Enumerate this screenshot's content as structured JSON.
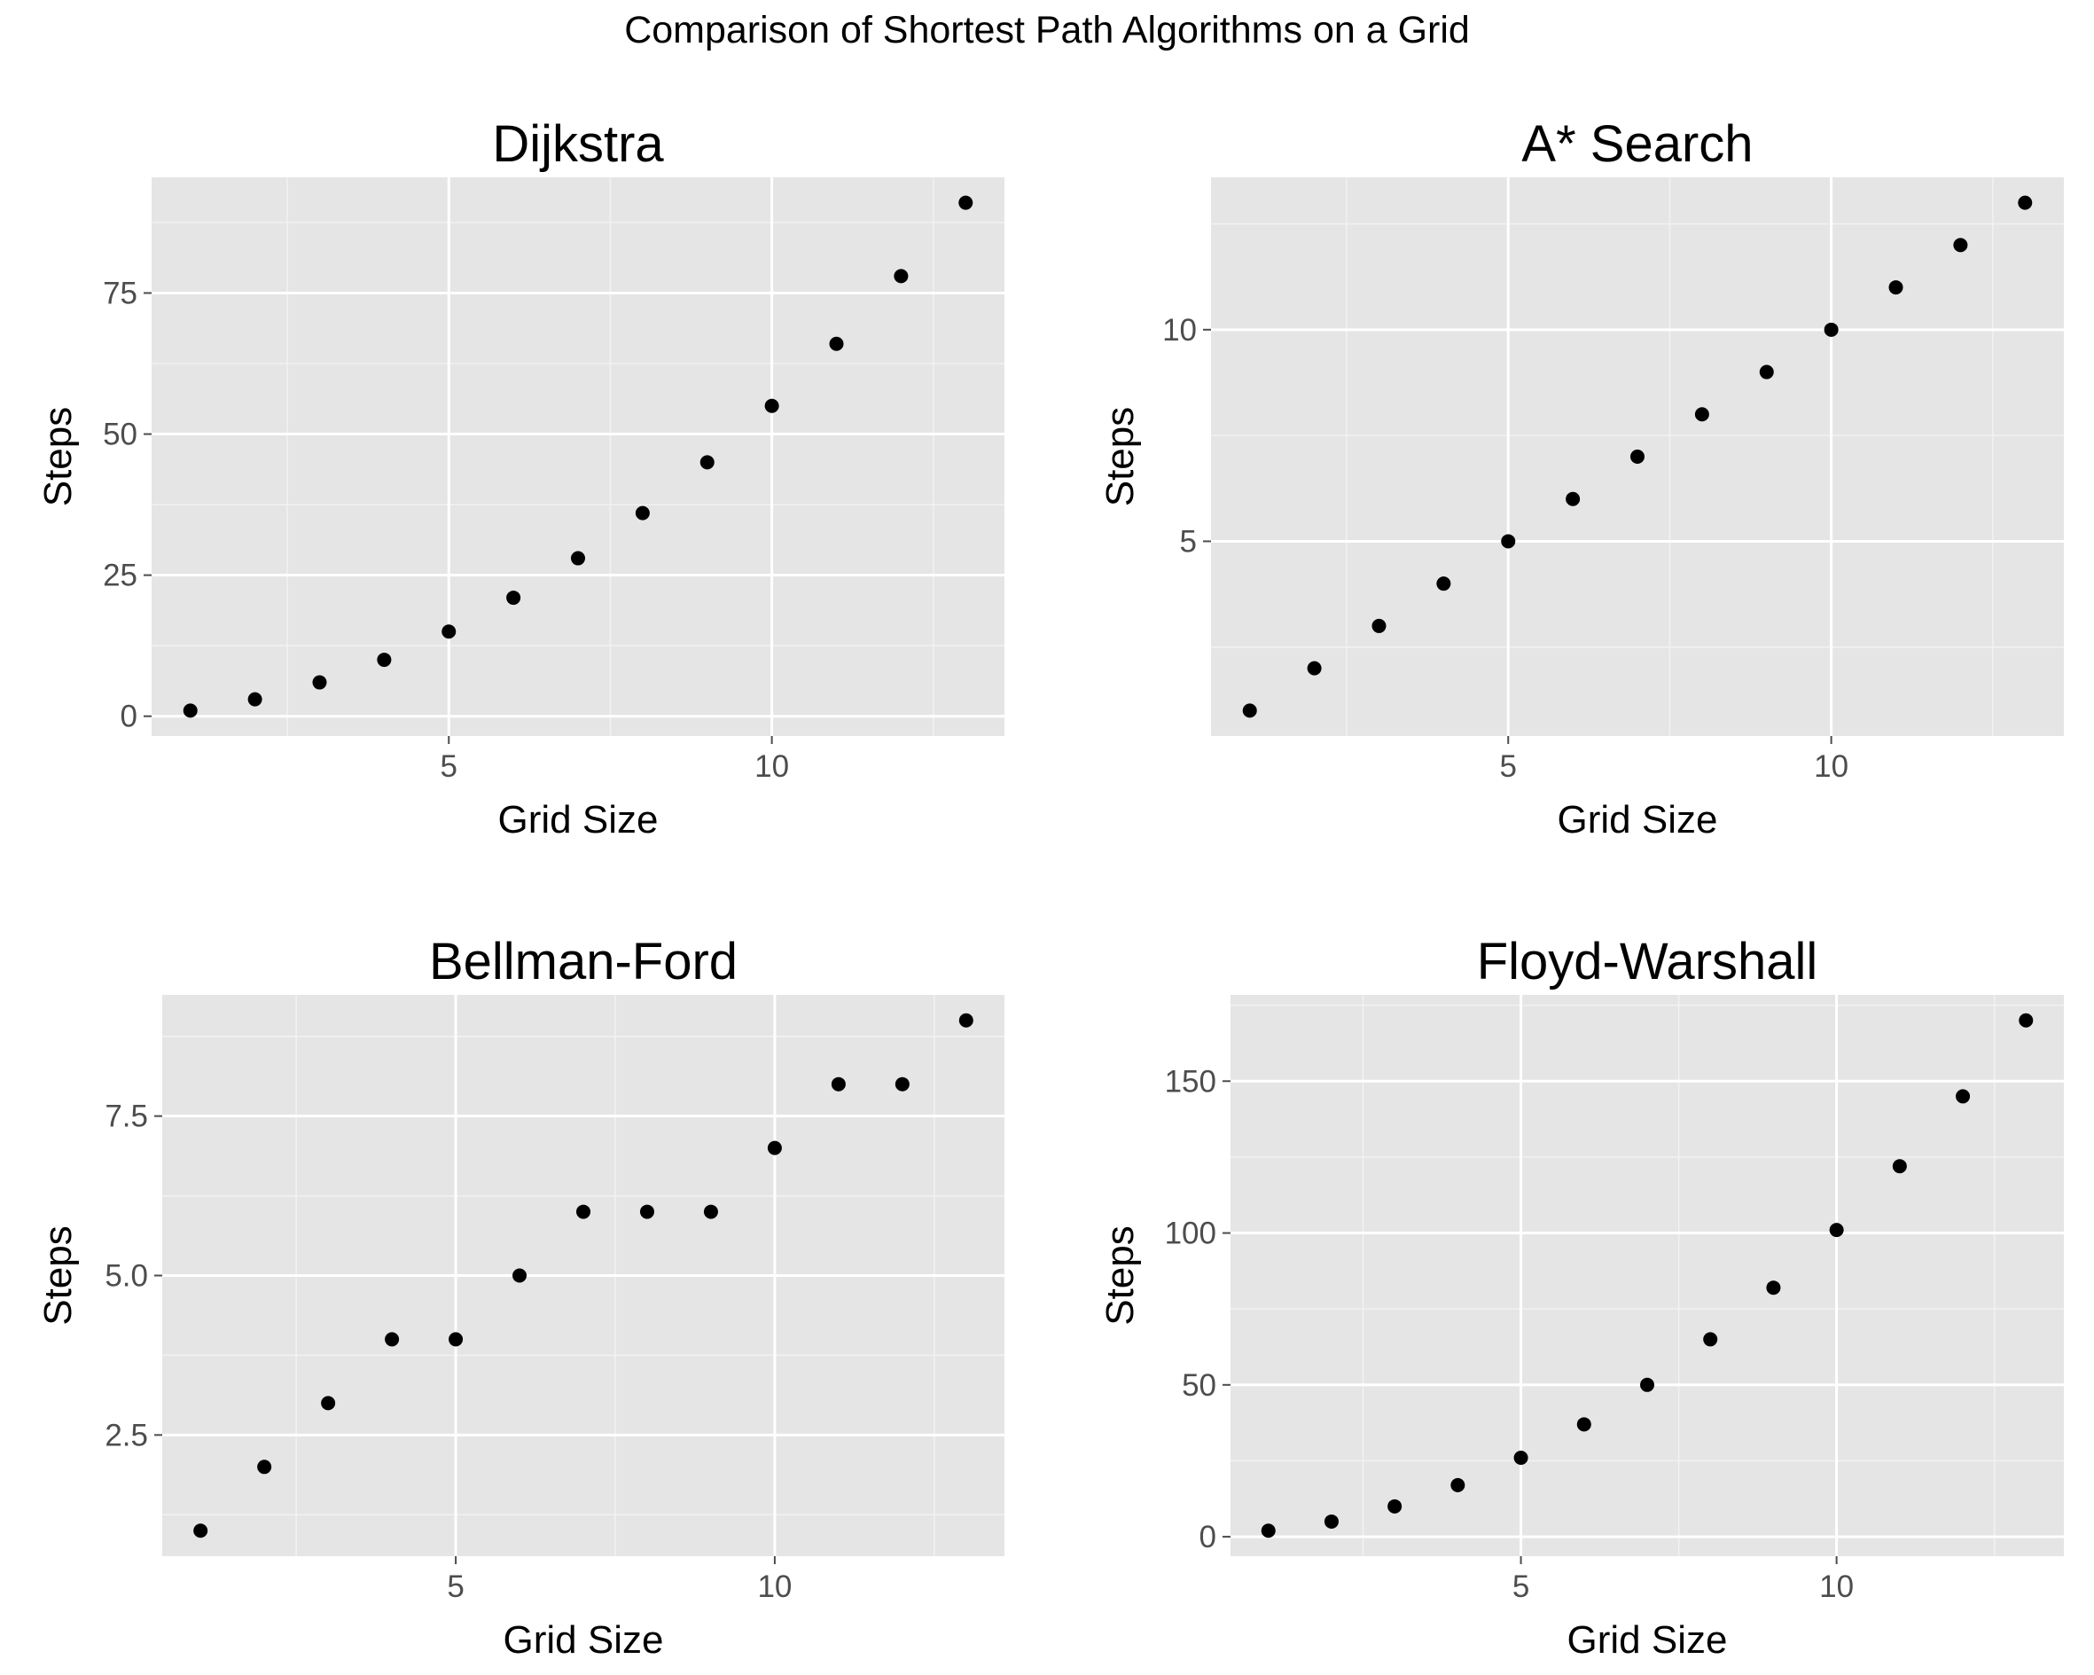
{
  "figure": {
    "title": "Comparison of Shortest Path Algorithms on a Grid",
    "panel_bg": "#e5e5e5",
    "grid_major": "#ffffff",
    "grid_minor": "#f2f2f2",
    "point_color": "#000000",
    "tick_color": "#4d4d4d"
  },
  "chart_data": [
    {
      "type": "scatter",
      "title": "Dijkstra",
      "xlabel": "Grid Size",
      "ylabel": "Steps",
      "x": [
        1,
        2,
        3,
        4,
        5,
        6,
        7,
        8,
        9,
        10,
        11,
        12,
        13
      ],
      "y": [
        1,
        3,
        6,
        10,
        15,
        21,
        28,
        36,
        45,
        55,
        66,
        78,
        91
      ],
      "xlim": [
        0.4,
        13.6
      ],
      "ylim": [
        -3.5,
        95.5
      ],
      "xticks": [
        5,
        10
      ],
      "yticks": [
        0,
        25,
        50,
        75
      ],
      "xtick_labels": [
        "5",
        "10"
      ],
      "ytick_labels": [
        "0",
        "25",
        "50",
        "75"
      ],
      "grid": true
    },
    {
      "type": "scatter",
      "title": "A* Search",
      "xlabel": "Grid Size",
      "ylabel": "Steps",
      "x": [
        1,
        2,
        3,
        4,
        5,
        6,
        7,
        8,
        9,
        10,
        11,
        12,
        13
      ],
      "y": [
        1,
        2,
        3,
        4,
        5,
        6,
        7,
        8,
        9,
        10,
        11,
        12,
        13
      ],
      "xlim": [
        0.4,
        13.6
      ],
      "ylim": [
        0.4,
        13.6
      ],
      "xticks": [
        5,
        10
      ],
      "yticks": [
        5,
        10
      ],
      "xtick_labels": [
        "5",
        "10"
      ],
      "ytick_labels": [
        "5",
        "10"
      ],
      "grid": true
    },
    {
      "type": "scatter",
      "title": "Bellman-Ford",
      "xlabel": "Grid Size",
      "ylabel": "Steps",
      "x": [
        1,
        2,
        3,
        4,
        5,
        6,
        7,
        8,
        9,
        10,
        11,
        12,
        13
      ],
      "y": [
        1,
        2,
        3,
        4,
        4,
        5,
        6,
        6,
        6,
        7,
        8,
        8,
        9
      ],
      "xlim": [
        0.4,
        13.6
      ],
      "ylim": [
        0.6,
        9.4
      ],
      "xticks": [
        5,
        10
      ],
      "yticks": [
        2.5,
        5.0,
        7.5
      ],
      "xtick_labels": [
        "5",
        "10"
      ],
      "ytick_labels": [
        "2.5",
        "5.0",
        "7.5"
      ],
      "grid": true
    },
    {
      "type": "scatter",
      "title": "Floyd-Warshall",
      "xlabel": "Grid Size",
      "ylabel": "Steps",
      "x": [
        1,
        2,
        3,
        4,
        5,
        6,
        7,
        8,
        9,
        10,
        11,
        12,
        13
      ],
      "y": [
        2,
        5,
        10,
        17,
        26,
        37,
        50,
        65,
        82,
        101,
        122,
        145,
        170
      ],
      "xlim": [
        0.4,
        13.6
      ],
      "ylim": [
        -6.4,
        178.4
      ],
      "xticks": [
        5,
        10
      ],
      "yticks": [
        0,
        50,
        100,
        150
      ],
      "xtick_labels": [
        "5",
        "10"
      ],
      "ytick_labels": [
        "0",
        "50",
        "100",
        "150"
      ],
      "grid": true
    }
  ]
}
